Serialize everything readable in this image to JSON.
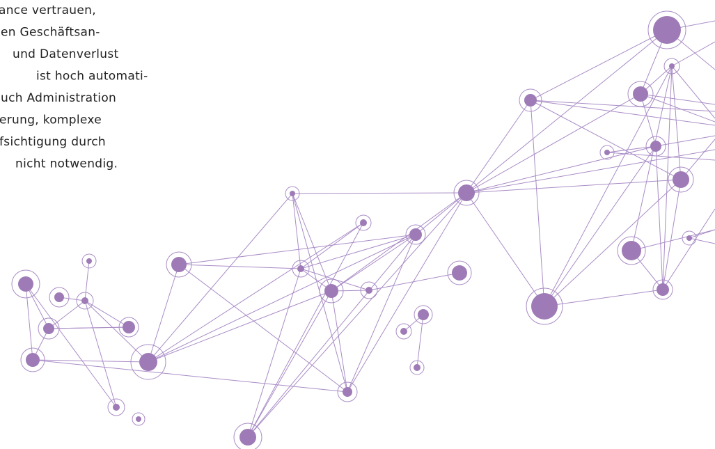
{
  "text": {
    "lines": [
      "ance vertrauen,",
      "en Geschäftsan-",
      "und Datenverlust",
      "ist hoch automati-",
      "uch Administration",
      "erung, komplexe",
      "fsichtigung durch",
      "nicht notwendig."
    ]
  }
}
